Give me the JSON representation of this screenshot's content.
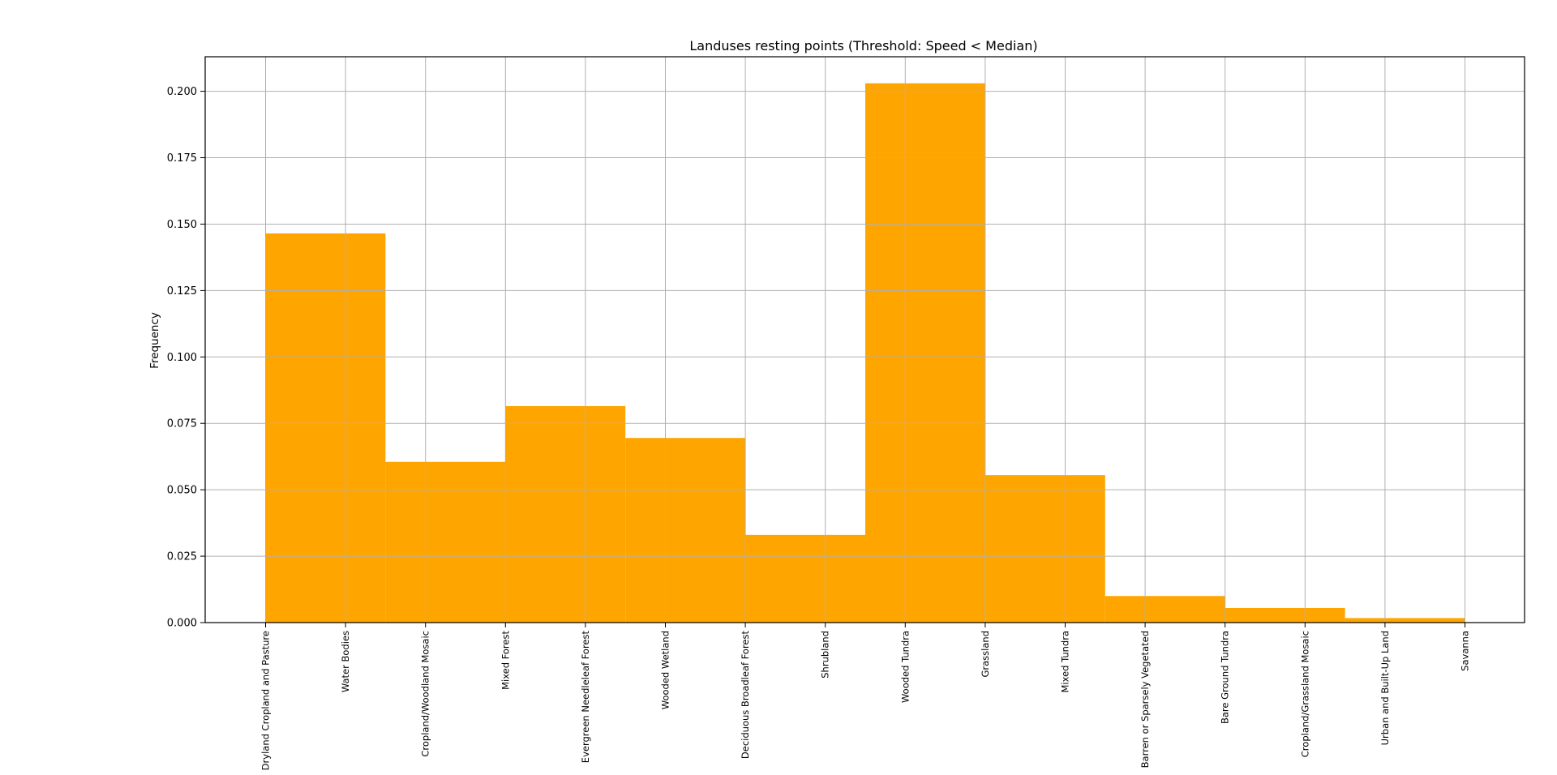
{
  "chart_data": {
    "type": "bar",
    "title": "Landuses resting points (Threshold: Speed < Median)",
    "ylabel": "Frequency",
    "xlabel": "",
    "ylim": [
      0,
      0.213
    ],
    "yticks": [
      "0.000",
      "0.025",
      "0.050",
      "0.075",
      "0.100",
      "0.125",
      "0.150",
      "0.175",
      "0.200"
    ],
    "grid": true,
    "bar_color": "#ffa500",
    "categories": [
      "Dryland Cropland and Pasture",
      "Water Bodies",
      "Cropland/Woodland Mosaic",
      "Mixed Forest",
      "Evergreen Needleleaf Forest",
      "Wooded Wetland",
      "Deciduous Broadleaf Forest",
      "Shrubland",
      "Wooded Tundra",
      "Grassland",
      "Mixed Tundra",
      "Barren or Sparsely Vegetated",
      "Bare Ground Tundra",
      "Cropland/Grassland Mosaic",
      "Urban and Built-Up Land",
      "Savanna"
    ],
    "bins": [
      {
        "from": 0,
        "to": 1.5,
        "value": 0.1465
      },
      {
        "from": 1.5,
        "to": 3,
        "value": 0.0605
      },
      {
        "from": 3,
        "to": 4.5,
        "value": 0.0815
      },
      {
        "from": 4.5,
        "to": 6,
        "value": 0.0695
      },
      {
        "from": 6,
        "to": 7.5,
        "value": 0.033
      },
      {
        "from": 7.5,
        "to": 9,
        "value": 0.203
      },
      {
        "from": 9,
        "to": 10.5,
        "value": 0.0555
      },
      {
        "from": 10.5,
        "to": 12,
        "value": 0.01
      },
      {
        "from": 12,
        "to": 13.5,
        "value": 0.0055
      },
      {
        "from": 13.5,
        "to": 15,
        "value": 0.0017
      }
    ]
  }
}
